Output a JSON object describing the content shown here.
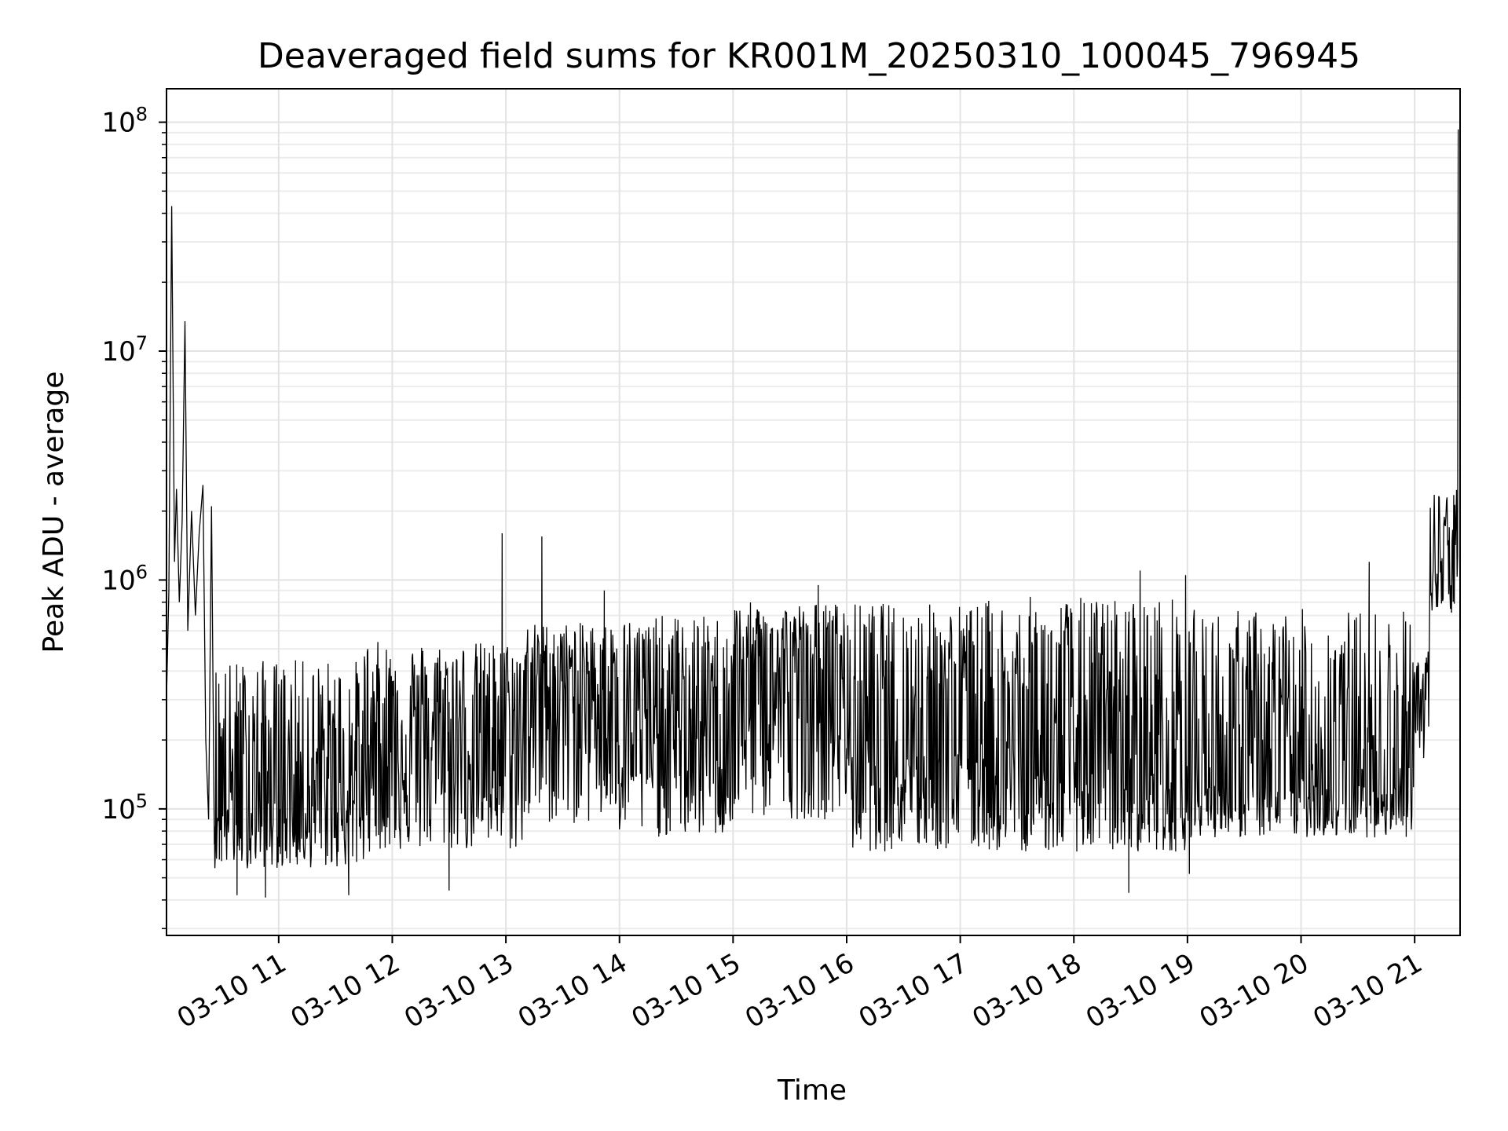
{
  "chart_data": {
    "type": "line",
    "title": "Deaveraged field sums for KR001M_20250310_100045_796945",
    "xlabel": "Time",
    "ylabel": "Peak ADU - average",
    "y_scale": "log",
    "ylim": [
      28000,
      140000000
    ],
    "xlim": [
      "2025-03-10 10:00:45",
      "2025-03-10 21:24:00"
    ],
    "x_ticks": [
      "2025-03-10 11:00",
      "2025-03-10 12:00",
      "2025-03-10 13:00",
      "2025-03-10 14:00",
      "2025-03-10 15:00",
      "2025-03-10 16:00",
      "2025-03-10 17:00",
      "2025-03-10 18:00",
      "2025-03-10 19:00",
      "2025-03-10 20:00",
      "2025-03-10 21:00"
    ],
    "x_tick_labels": [
      "03-10 11",
      "03-10 12",
      "03-10 13",
      "03-10 14",
      "03-10 15",
      "03-10 16",
      "03-10 17",
      "03-10 18",
      "03-10 19",
      "03-10 20",
      "03-10 21"
    ],
    "y_ticks": [
      100000,
      1000000,
      10000000,
      100000000
    ],
    "y_tick_labels": [
      {
        "base": "10",
        "exp": "5"
      },
      {
        "base": "10",
        "exp": "6"
      },
      {
        "base": "10",
        "exp": "7"
      },
      {
        "base": "10",
        "exp": "8"
      }
    ],
    "grid": true,
    "line_color": "#000000",
    "series": [
      {
        "points": [
          {
            "t": "2025-03-10 10:00:45",
            "y": 300000
          },
          {
            "t": "2025-03-10 10:02:00",
            "y": 900000
          },
          {
            "t": "2025-03-10 10:03:30",
            "y": 43000000
          },
          {
            "t": "2025-03-10 10:05:00",
            "y": 1200000
          },
          {
            "t": "2025-03-10 10:06:00",
            "y": 2500000
          },
          {
            "t": "2025-03-10 10:07:30",
            "y": 800000
          },
          {
            "t": "2025-03-10 10:09:00",
            "y": 1800000
          },
          {
            "t": "2025-03-10 10:10:30",
            "y": 13500000
          },
          {
            "t": "2025-03-10 10:12:00",
            "y": 600000
          },
          {
            "t": "2025-03-10 10:14:00",
            "y": 2000000
          },
          {
            "t": "2025-03-10 10:16:00",
            "y": 700000
          },
          {
            "t": "2025-03-10 10:18:00",
            "y": 1600000
          },
          {
            "t": "2025-03-10 10:20:00",
            "y": 2600000
          },
          {
            "t": "2025-03-10 10:21:30",
            "y": 200000
          },
          {
            "t": "2025-03-10 10:23:00",
            "y": 90000
          },
          {
            "t": "2025-03-10 10:24:30",
            "y": 2100000
          },
          {
            "t": "2025-03-10 10:26:00",
            "y": 70000
          }
        ]
      }
    ],
    "segments": [
      {
        "start": "2025-03-10 10:26:00",
        "end": "2025-03-10 11:45:00",
        "lo": 55000,
        "hi": 450000,
        "mid": 110000
      },
      {
        "start": "2025-03-10 11:45:00",
        "end": "2025-03-10 13:10:00",
        "lo": 65000,
        "hi": 540000,
        "mid": 200000
      },
      {
        "start": "2025-03-10 13:10:00",
        "end": "2025-03-10 14:00:00",
        "lo": 85000,
        "hi": 650000,
        "mid": 350000
      },
      {
        "start": "2025-03-10 14:00:00",
        "end": "2025-03-10 15:00:00",
        "lo": 75000,
        "hi": 700000,
        "mid": 220000
      },
      {
        "start": "2025-03-10 15:00:00",
        "end": "2025-03-10 16:00:00",
        "lo": 90000,
        "hi": 800000,
        "mid": 350000
      },
      {
        "start": "2025-03-10 16:00:00",
        "end": "2025-03-10 17:15:00",
        "lo": 65000,
        "hi": 800000,
        "mid": 200000
      },
      {
        "start": "2025-03-10 17:15:00",
        "end": "2025-03-10 19:00:00",
        "lo": 65000,
        "hi": 850000,
        "mid": 150000
      },
      {
        "start": "2025-03-10 19:00:00",
        "end": "2025-03-10 21:00:00",
        "lo": 75000,
        "hi": 750000,
        "mid": 130000
      },
      {
        "start": "2025-03-10 21:00:00",
        "end": "2025-03-10 21:08:00",
        "lo": 150000,
        "hi": 500000,
        "mid": 280000
      },
      {
        "start": "2025-03-10 21:08:00",
        "end": "2025-03-10 21:23:00",
        "lo": 700000,
        "hi": 2500000,
        "mid": 1100000
      }
    ],
    "spikes": [
      {
        "t": "2025-03-10 12:58:00",
        "y": 1600000
      },
      {
        "t": "2025-03-10 13:19:00",
        "y": 1550000
      },
      {
        "t": "2025-03-10 13:52:00",
        "y": 900000
      },
      {
        "t": "2025-03-10 15:45:00",
        "y": 950000
      },
      {
        "t": "2025-03-10 18:35:00",
        "y": 1100000
      },
      {
        "t": "2025-03-10 18:59:00",
        "y": 1050000
      },
      {
        "t": "2025-03-10 20:36:00",
        "y": 1200000
      },
      {
        "t": "2025-03-10 21:23:00",
        "y": 93000000
      },
      {
        "t": "2025-03-10 18:29:00",
        "y": 43000
      },
      {
        "t": "2025-03-10 19:01:00",
        "y": 52000
      },
      {
        "t": "2025-03-10 12:30:00",
        "y": 44000
      },
      {
        "t": "2025-03-10 10:38:00",
        "y": 42000
      },
      {
        "t": "2025-03-10 10:53:00",
        "y": 41000
      },
      {
        "t": "2025-03-10 11:37:00",
        "y": 42000
      }
    ]
  }
}
